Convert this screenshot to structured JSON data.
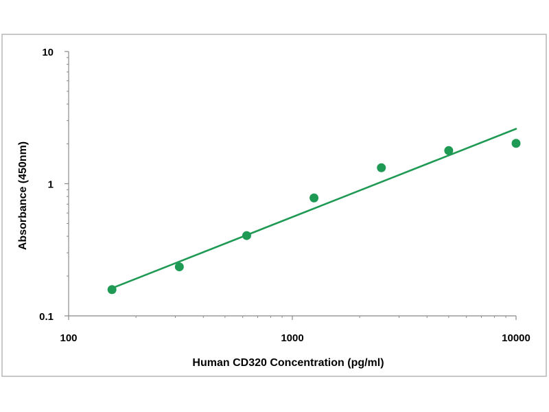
{
  "chart_data": {
    "type": "scatter",
    "title": "",
    "xlabel": "Human CD320 Concentration (pg/ml)",
    "ylabel": "Absorbance (450nm)",
    "xscale": "log",
    "yscale": "log",
    "xlim": [
      100,
      10000
    ],
    "ylim": [
      0.1,
      10
    ],
    "x_tick_labels": [
      "100",
      "1000",
      "10000"
    ],
    "y_tick_labels": [
      "10",
      "1",
      "0.1"
    ],
    "grid": false,
    "legend": "none",
    "series": [
      {
        "points": [
          {
            "x": 156.25,
            "y": 0.158
          },
          {
            "x": 312.5,
            "y": 0.235
          },
          {
            "x": 625,
            "y": 0.405
          },
          {
            "x": 1250,
            "y": 0.78
          },
          {
            "x": 2500,
            "y": 1.32
          },
          {
            "x": 5000,
            "y": 1.78
          },
          {
            "x": 10000,
            "y": 2.02
          }
        ],
        "color": "#1f9a55"
      }
    ],
    "fit_line": {
      "type": "power",
      "from": {
        "x": 156.25,
        "y": 0.162
      },
      "to": {
        "x": 10000,
        "y": 2.6
      },
      "color": "#1f9a55"
    },
    "colors": {
      "frame": "#b5b5b5",
      "axis": "#888888",
      "marker": "#1f9a55",
      "text": "#000000"
    }
  }
}
